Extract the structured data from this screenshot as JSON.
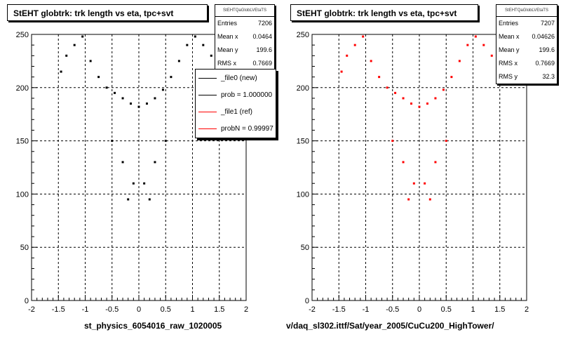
{
  "chart_data": [
    {
      "type": "scatter",
      "title": "StEHT globtrk: trk length vs eta, tpc+svt",
      "xlabel": "st_physics_6054016_raw_1020005",
      "ylabel": "",
      "xlim": [
        -2,
        2
      ],
      "ylim": [
        0,
        250
      ],
      "x_ticks": [
        -2,
        -1.5,
        -1,
        -0.5,
        0,
        0.5,
        1,
        1.5,
        2
      ],
      "y_ticks": [
        0,
        50,
        100,
        150,
        200,
        250
      ],
      "grid": true,
      "marker_color": "#000000",
      "series": [
        {
          "name": "_file0 (new)",
          "x": [
            -1.45,
            -1.35,
            -1.2,
            -1.05,
            -0.9,
            -0.75,
            -0.6,
            -0.45,
            -0.3,
            -0.15,
            0.0,
            0.15,
            0.3,
            0.45,
            0.6,
            0.75,
            0.9,
            1.05,
            1.2,
            1.35,
            -0.5,
            -0.3,
            -0.1,
            0.1,
            0.3,
            0.5,
            -0.2,
            0.2
          ],
          "y": [
            215,
            230,
            240,
            248,
            225,
            210,
            200,
            195,
            190,
            185,
            182,
            185,
            190,
            198,
            210,
            225,
            240,
            248,
            240,
            230,
            150,
            130,
            110,
            110,
            130,
            150,
            95,
            95
          ]
        }
      ],
      "stats": {
        "header": "StEHTQaGlobLVEtaTS",
        "rows": [
          {
            "label": "Entries",
            "value": "7206"
          },
          {
            "label": "Mean x",
            "value": "0.0464"
          },
          {
            "label": "Mean y",
            "value": "199.6"
          },
          {
            "label": "RMS x",
            "value": "0.7669"
          }
        ]
      },
      "legend": [
        {
          "label": "_file0 (new)",
          "color": "#000000"
        },
        {
          "label": "prob = 1.000000",
          "color": "#000000"
        },
        {
          "label": "_file1 (ref)",
          "color": "#ff0000"
        },
        {
          "label": "probN = 0.99997",
          "color": "#ff0000"
        }
      ]
    },
    {
      "type": "scatter",
      "title": "StEHT globtrk: trk length vs eta, tpc+svt",
      "xlabel": "v/daq_sl302.ittf/Sat/year_2005/CuCu200_HighTower/",
      "ylabel": "",
      "xlim": [
        -2,
        2
      ],
      "ylim": [
        0,
        250
      ],
      "x_ticks": [
        -2,
        -1.5,
        -1,
        -0.5,
        0,
        0.5,
        1,
        1.5,
        2
      ],
      "y_ticks": [
        0,
        50,
        100,
        150,
        200,
        250
      ],
      "grid": true,
      "marker_color": "#ff0000",
      "series": [
        {
          "name": "_file1 (ref)",
          "x": [
            -1.45,
            -1.35,
            -1.2,
            -1.05,
            -0.9,
            -0.75,
            -0.6,
            -0.45,
            -0.3,
            -0.15,
            0.0,
            0.15,
            0.3,
            0.45,
            0.6,
            0.75,
            0.9,
            1.05,
            1.2,
            1.35,
            -0.5,
            -0.3,
            -0.1,
            0.1,
            0.3,
            0.5,
            -0.2,
            0.2
          ],
          "y": [
            215,
            230,
            240,
            248,
            225,
            210,
            200,
            195,
            190,
            185,
            182,
            185,
            190,
            198,
            210,
            225,
            240,
            248,
            240,
            230,
            150,
            130,
            110,
            110,
            130,
            150,
            95,
            95
          ]
        }
      ],
      "stats": {
        "header": "StEHTQaGlobLVEtaTS",
        "rows": [
          {
            "label": "Entries",
            "value": "7207"
          },
          {
            "label": "Mean x",
            "value": "0.04626"
          },
          {
            "label": "Mean y",
            "value": "199.6"
          },
          {
            "label": "RMS x",
            "value": "0.7669"
          },
          {
            "label": "RMS y",
            "value": "32.3"
          }
        ]
      }
    }
  ]
}
